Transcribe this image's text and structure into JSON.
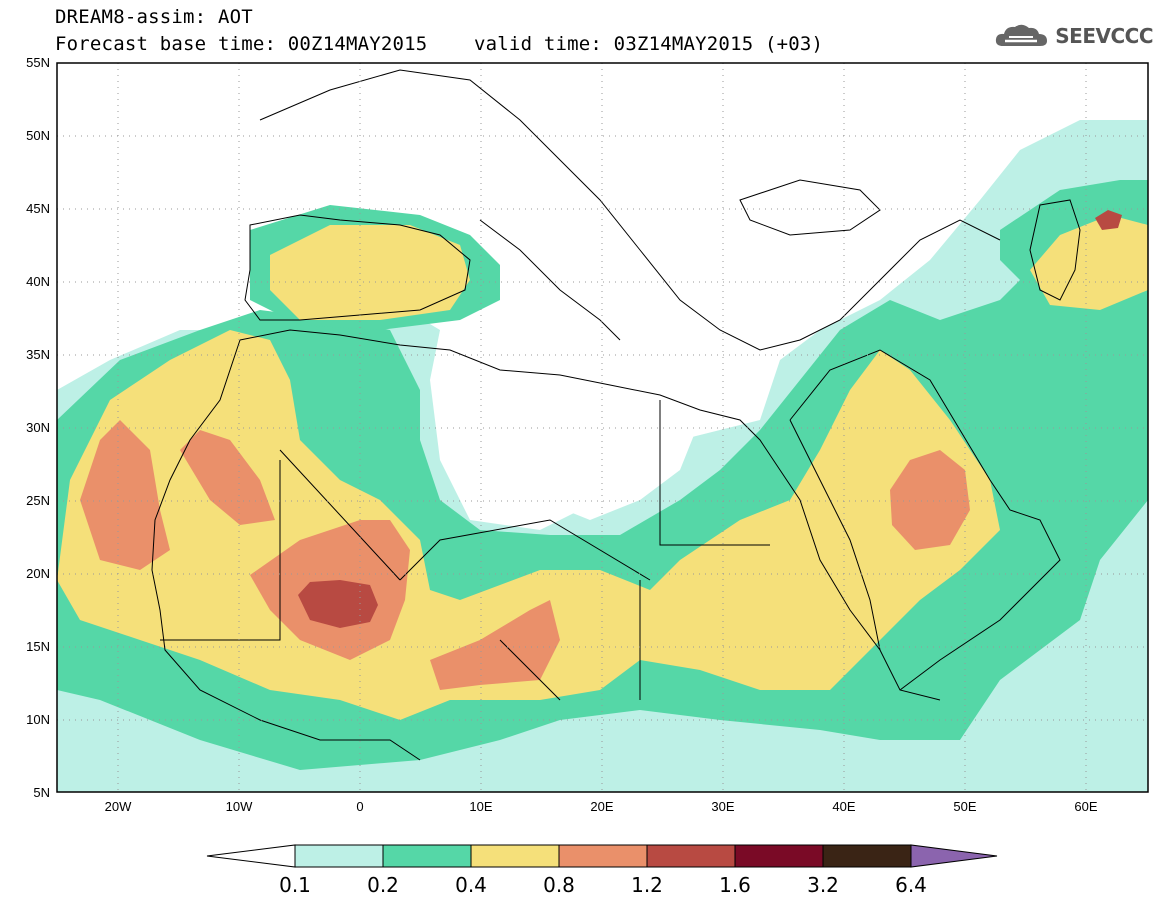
{
  "header": {
    "title": "DREAM8-assim: AOT",
    "forecast_base": "Forecast base time: 00Z14MAY2015",
    "valid_time": "valid time: 03Z14MAY2015 (+03)"
  },
  "logo": {
    "text": "SEEVCCC",
    "icon": "cloud-logo-icon"
  },
  "map": {
    "lon_range": [
      -25,
      65
    ],
    "lat_range": [
      5,
      55
    ],
    "lat_labels": [
      "55N",
      "50N",
      "45N",
      "40N",
      "35N",
      "30N",
      "25N",
      "20N",
      "15N",
      "10N",
      "5N"
    ],
    "lon_labels": [
      "20W",
      "10W",
      "0",
      "10E",
      "20E",
      "30E",
      "40E",
      "50E",
      "60E"
    ]
  },
  "colorbar": {
    "labels": [
      "0.1",
      "0.2",
      "0.4",
      "0.8",
      "1.2",
      "1.6",
      "3.2",
      "6.4"
    ],
    "colors": [
      "#ffffff",
      "#bdf0e6",
      "#55d7a7",
      "#f5e07a",
      "#ea906a",
      "#b84a42",
      "#7a0a26",
      "#3a2415",
      "#8b64ae"
    ]
  }
}
